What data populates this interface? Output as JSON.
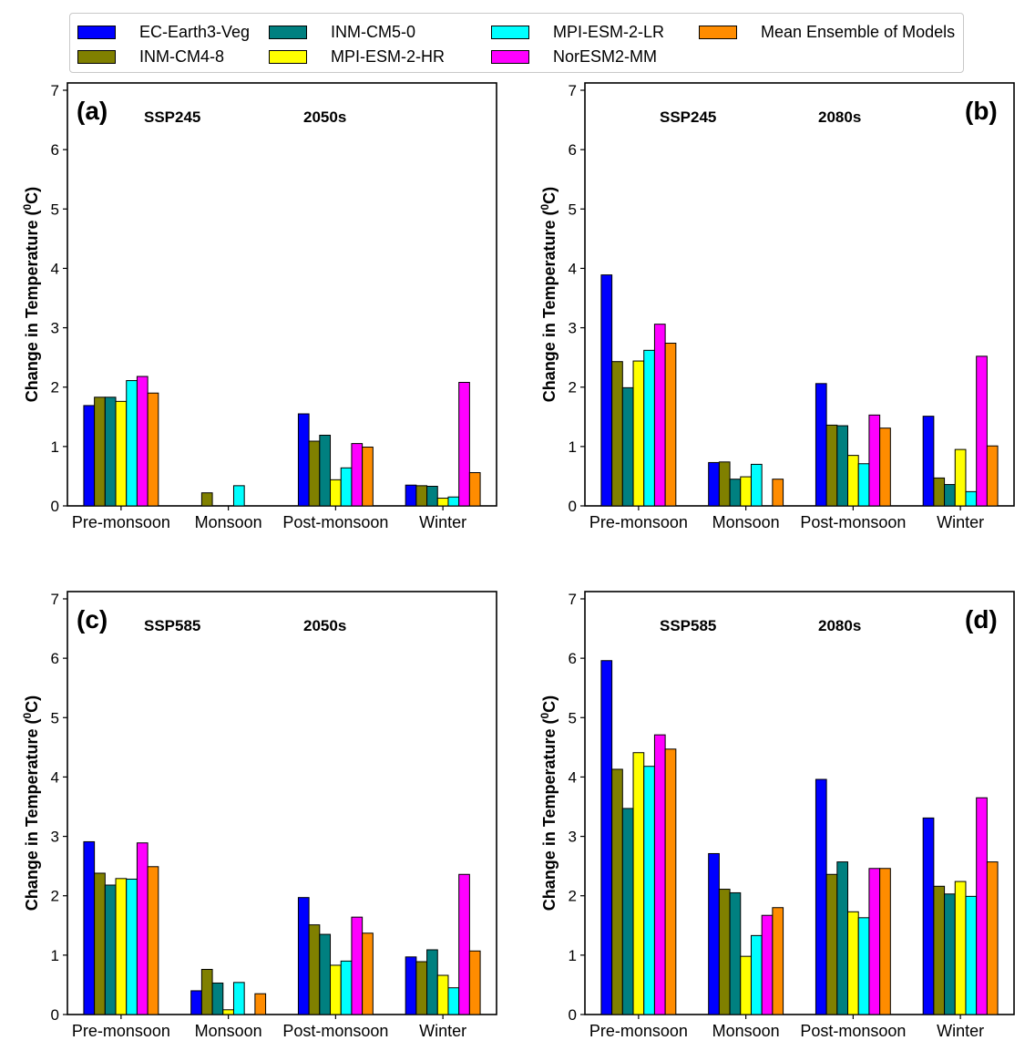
{
  "legend": {
    "items": [
      {
        "name": "EC-Earth3-Veg",
        "color": "#0000ff"
      },
      {
        "name": "INM-CM4-8",
        "color": "#808000"
      },
      {
        "name": "INM-CM5-0",
        "color": "#008080"
      },
      {
        "name": "MPI-ESM-2-HR",
        "color": "#ffff00"
      },
      {
        "name": "MPI-ESM-2-LR",
        "color": "#00ffff"
      },
      {
        "name": "NorESM2-MM",
        "color": "#ff00ff"
      },
      {
        "name": "Mean Ensemble of Models",
        "color": "#ff8c00"
      }
    ]
  },
  "chart_data": [
    {
      "type": "bar",
      "panel_label": "(a)",
      "scenario": "SSP245",
      "period": "2050s",
      "ylabel": "Change in Temperature (0C)",
      "ylim": [
        0,
        7
      ],
      "yticks": [
        "0",
        "1",
        "2",
        "3",
        "4",
        "5",
        "6",
        "7"
      ],
      "categories": [
        "Pre-monsoon",
        "Monsoon",
        "Post-monsoon",
        "Winter"
      ],
      "series": [
        {
          "name": "EC-Earth3-Veg",
          "values": [
            1.69,
            0.0,
            1.55,
            0.35
          ]
        },
        {
          "name": "INM-CM4-8",
          "values": [
            1.83,
            0.22,
            1.09,
            0.34
          ]
        },
        {
          "name": "INM-CM5-0",
          "values": [
            1.83,
            0.0,
            1.19,
            0.33
          ]
        },
        {
          "name": "MPI-ESM-2-HR",
          "values": [
            1.76,
            0.0,
            0.44,
            0.13
          ]
        },
        {
          "name": "MPI-ESM-2-LR",
          "values": [
            2.11,
            0.34,
            0.64,
            0.15
          ]
        },
        {
          "name": "NorESM2-MM",
          "values": [
            2.18,
            0.0,
            1.05,
            2.08
          ]
        },
        {
          "name": "Mean Ensemble of Models",
          "values": [
            1.9,
            0.0,
            0.99,
            0.56
          ]
        }
      ]
    },
    {
      "type": "bar",
      "panel_label": "(b)",
      "scenario": "SSP245",
      "period": "2080s",
      "ylabel": "Change in Temperature (0C)",
      "ylim": [
        0,
        7
      ],
      "yticks": [
        "0",
        "1",
        "2",
        "3",
        "4",
        "5",
        "6",
        "7"
      ],
      "categories": [
        "Pre-monsoon",
        "Monsoon",
        "Post-monsoon",
        "Winter"
      ],
      "series": [
        {
          "name": "EC-Earth3-Veg",
          "values": [
            3.89,
            0.73,
            2.06,
            1.51
          ]
        },
        {
          "name": "INM-CM4-8",
          "values": [
            2.43,
            0.74,
            1.36,
            0.47
          ]
        },
        {
          "name": "INM-CM5-0",
          "values": [
            1.99,
            0.45,
            1.35,
            0.36
          ]
        },
        {
          "name": "MPI-ESM-2-HR",
          "values": [
            2.44,
            0.49,
            0.85,
            0.95
          ]
        },
        {
          "name": "MPI-ESM-2-LR",
          "values": [
            2.62,
            0.7,
            0.71,
            0.24
          ]
        },
        {
          "name": "NorESM2-MM",
          "values": [
            3.06,
            0.0,
            1.53,
            2.52
          ]
        },
        {
          "name": "Mean Ensemble of Models",
          "values": [
            2.74,
            0.45,
            1.31,
            1.01
          ]
        }
      ]
    },
    {
      "type": "bar",
      "panel_label": "(c)",
      "scenario": "SSP585",
      "period": "2050s",
      "ylabel": "Change in Temperature (0C)",
      "ylim": [
        0,
        7
      ],
      "yticks": [
        "0",
        "1",
        "2",
        "3",
        "4",
        "5",
        "6",
        "7"
      ],
      "categories": [
        "Pre-monsoon",
        "Monsoon",
        "Post-monsoon",
        "Winter"
      ],
      "series": [
        {
          "name": "EC-Earth3-Veg",
          "values": [
            2.91,
            0.4,
            1.97,
            0.97
          ]
        },
        {
          "name": "INM-CM4-8",
          "values": [
            2.38,
            0.76,
            1.51,
            0.89
          ]
        },
        {
          "name": "INM-CM5-0",
          "values": [
            2.18,
            0.53,
            1.35,
            1.09
          ]
        },
        {
          "name": "MPI-ESM-2-HR",
          "values": [
            2.29,
            0.08,
            0.83,
            0.66
          ]
        },
        {
          "name": "MPI-ESM-2-LR",
          "values": [
            2.28,
            0.54,
            0.9,
            0.45
          ]
        },
        {
          "name": "NorESM2-MM",
          "values": [
            2.89,
            0.0,
            1.64,
            2.36
          ]
        },
        {
          "name": "Mean Ensemble of Models",
          "values": [
            2.49,
            0.35,
            1.37,
            1.07
          ]
        }
      ]
    },
    {
      "type": "bar",
      "panel_label": "(d)",
      "scenario": "SSP585",
      "period": "2080s",
      "ylabel": "Change in Temperature (0C)",
      "ylim": [
        0,
        7
      ],
      "yticks": [
        "0",
        "1",
        "2",
        "3",
        "4",
        "5",
        "6",
        "7"
      ],
      "categories": [
        "Pre-monsoon",
        "Monsoon",
        "Post-monsoon",
        "Winter"
      ],
      "series": [
        {
          "name": "EC-Earth3-Veg",
          "values": [
            5.96,
            2.71,
            3.96,
            3.31
          ]
        },
        {
          "name": "INM-CM4-8",
          "values": [
            4.13,
            2.11,
            2.36,
            2.16
          ]
        },
        {
          "name": "INM-CM5-0",
          "values": [
            3.47,
            2.05,
            2.57,
            2.03
          ]
        },
        {
          "name": "MPI-ESM-2-HR",
          "values": [
            4.41,
            0.98,
            1.73,
            2.24
          ]
        },
        {
          "name": "MPI-ESM-2-LR",
          "values": [
            4.18,
            1.33,
            1.63,
            1.99
          ]
        },
        {
          "name": "NorESM2-MM",
          "values": [
            4.71,
            1.67,
            2.46,
            3.65
          ]
        },
        {
          "name": "Mean Ensemble of Models",
          "values": [
            4.47,
            1.8,
            2.46,
            2.57
          ]
        }
      ]
    }
  ]
}
